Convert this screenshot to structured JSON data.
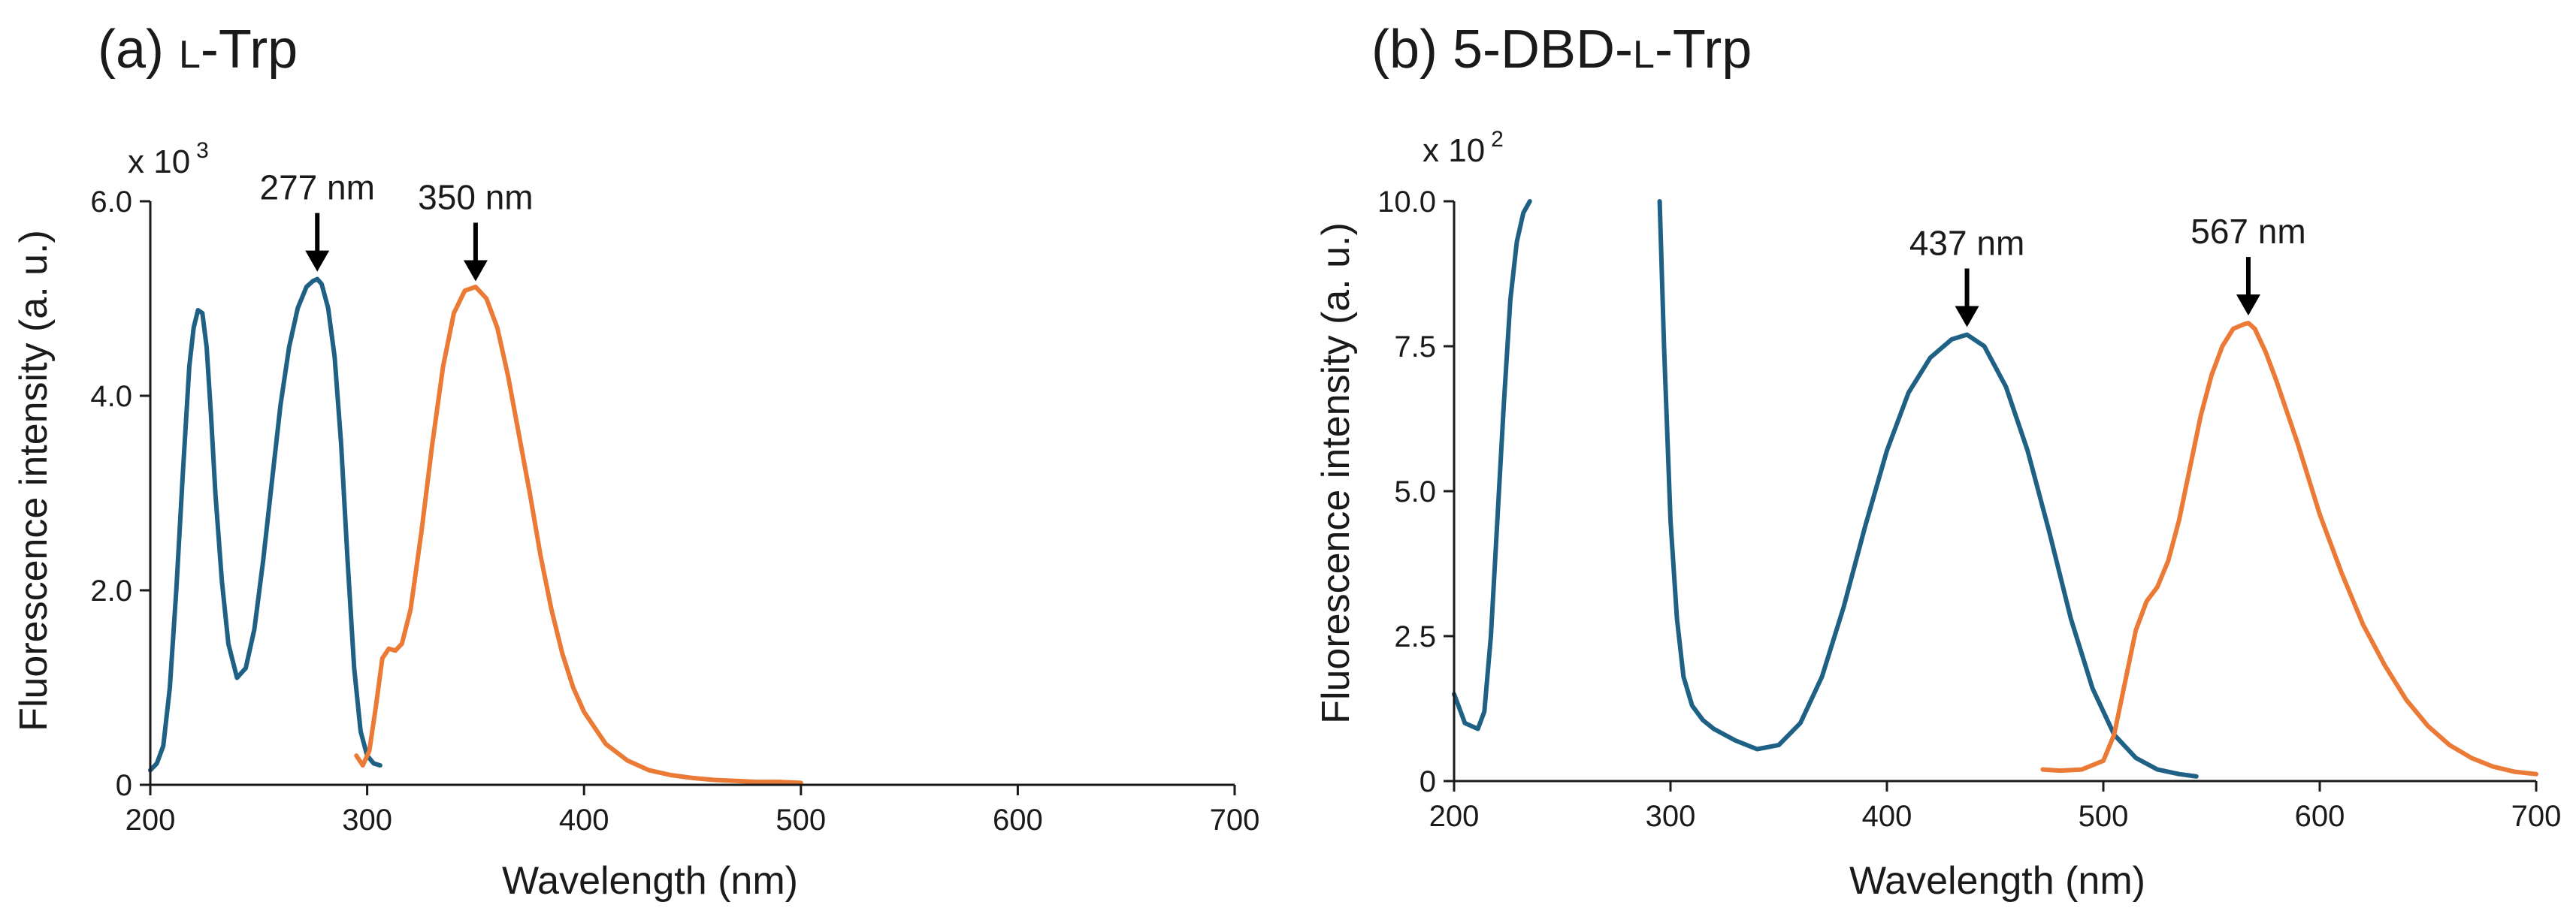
{
  "colors": {
    "excitation": "#1f6185",
    "emission": "#ea7a35",
    "axis": "#1a1a1a"
  },
  "chart_data": [
    {
      "type": "line",
      "title": "(a) L-Trp",
      "title_parts": [
        "(a) ",
        "L",
        "-Trp"
      ],
      "xlabel": "Wavelength (nm)",
      "ylabel": "Fluorescence intensity (a. u.)",
      "y_multiplier": {
        "base": "x 10",
        "exponent": "3"
      },
      "xlim": [
        200,
        700
      ],
      "ylim": [
        0,
        6.0
      ],
      "x_ticks": [
        200,
        300,
        400,
        500,
        600,
        700
      ],
      "x_tick_labels": [
        "200",
        "300",
        "400",
        "500",
        "600",
        "700"
      ],
      "y_ticks": [
        0,
        2.0,
        4.0,
        6.0
      ],
      "y_tick_labels": [
        "0",
        "2.0",
        "4.0",
        "6.0"
      ],
      "grid": false,
      "annotations": [
        {
          "label": "277 nm",
          "x": 277,
          "y": 5.2
        },
        {
          "label": "350 nm",
          "x": 350,
          "y": 5.1
        }
      ],
      "series": [
        {
          "role": "excitation",
          "x": [
            200,
            203,
            206,
            209,
            212,
            215,
            218,
            220,
            222,
            224,
            226,
            228,
            230,
            233,
            236,
            240,
            244,
            248,
            252,
            256,
            260,
            264,
            268,
            272,
            275,
            277,
            279,
            282,
            285,
            288,
            291,
            294,
            297,
            300,
            303,
            306
          ],
          "y": [
            0.15,
            0.22,
            0.4,
            1.0,
            2.0,
            3.2,
            4.3,
            4.7,
            4.88,
            4.85,
            4.5,
            3.8,
            3.0,
            2.1,
            1.45,
            1.1,
            1.2,
            1.6,
            2.3,
            3.1,
            3.9,
            4.5,
            4.9,
            5.12,
            5.18,
            5.2,
            5.15,
            4.9,
            4.4,
            3.5,
            2.3,
            1.2,
            0.55,
            0.3,
            0.22,
            0.2
          ]
        },
        {
          "role": "emission",
          "x": [
            295,
            298,
            301,
            304,
            307,
            310,
            313,
            316,
            320,
            325,
            330,
            335,
            340,
            345,
            350,
            355,
            360,
            365,
            370,
            375,
            380,
            385,
            390,
            395,
            400,
            410,
            420,
            430,
            440,
            450,
            460,
            470,
            480,
            490,
            500
          ],
          "y": [
            0.3,
            0.2,
            0.35,
            0.8,
            1.3,
            1.4,
            1.38,
            1.45,
            1.8,
            2.6,
            3.5,
            4.3,
            4.85,
            5.08,
            5.12,
            5.0,
            4.7,
            4.2,
            3.6,
            3.0,
            2.35,
            1.8,
            1.35,
            1.0,
            0.75,
            0.42,
            0.25,
            0.15,
            0.1,
            0.07,
            0.05,
            0.04,
            0.03,
            0.03,
            0.02
          ]
        }
      ]
    },
    {
      "type": "line",
      "title": "(b) 5-DBD-L-Trp",
      "title_parts": [
        "(b) 5-DBD-",
        "L",
        "-Trp"
      ],
      "xlabel": "Wavelength (nm)",
      "ylabel": "Fluorescence intensity (a. u.)",
      "y_multiplier": {
        "base": "x 10",
        "exponent": "2"
      },
      "xlim": [
        200,
        700
      ],
      "ylim": [
        0,
        10.0
      ],
      "x_ticks": [
        200,
        300,
        400,
        500,
        600,
        700
      ],
      "x_tick_labels": [
        "200",
        "300",
        "400",
        "500",
        "600",
        "700"
      ],
      "y_ticks": [
        0,
        2.5,
        5.0,
        7.5,
        10.0
      ],
      "y_tick_labels": [
        "0",
        "2.5",
        "5.0",
        "7.5",
        "10.0"
      ],
      "grid": false,
      "annotations": [
        {
          "label": "437 nm",
          "x": 437,
          "y": 7.7
        },
        {
          "label": "567 nm",
          "x": 567,
          "y": 7.9
        }
      ],
      "series": [
        {
          "role": "excitation",
          "x": [
            200,
            202,
            205,
            208,
            211,
            214,
            217,
            220,
            223,
            226,
            229,
            232,
            235
          ],
          "y": [
            1.5,
            1.3,
            1.0,
            0.95,
            0.9,
            1.2,
            2.5,
            4.5,
            6.5,
            8.3,
            9.3,
            9.8,
            10.0
          ]
        },
        {
          "role": "excitation",
          "x": [
            295,
            297,
            300,
            303,
            306,
            310,
            315,
            320,
            330,
            340,
            350,
            360,
            370,
            380,
            390,
            400,
            410,
            420,
            430,
            437,
            445,
            455,
            465,
            475,
            485,
            495,
            505,
            515,
            525,
            535,
            543
          ],
          "y": [
            10.0,
            7.5,
            4.5,
            2.8,
            1.8,
            1.3,
            1.05,
            0.9,
            0.7,
            0.55,
            0.62,
            1.0,
            1.8,
            3.0,
            4.4,
            5.7,
            6.7,
            7.3,
            7.62,
            7.7,
            7.5,
            6.8,
            5.7,
            4.3,
            2.8,
            1.6,
            0.8,
            0.4,
            0.2,
            0.12,
            0.08
          ]
        },
        {
          "role": "emission",
          "x": [
            472,
            480,
            490,
            500,
            505,
            510,
            515,
            520,
            525,
            530,
            535,
            540,
            545,
            550,
            555,
            560,
            565,
            567,
            570,
            575,
            580,
            590,
            600,
            610,
            620,
            630,
            640,
            650,
            660,
            670,
            680,
            690,
            700
          ],
          "y": [
            0.2,
            0.18,
            0.2,
            0.35,
            0.8,
            1.7,
            2.6,
            3.1,
            3.35,
            3.8,
            4.5,
            5.4,
            6.3,
            7.0,
            7.5,
            7.8,
            7.88,
            7.9,
            7.8,
            7.4,
            6.9,
            5.8,
            4.6,
            3.6,
            2.7,
            2.0,
            1.4,
            0.95,
            0.62,
            0.4,
            0.25,
            0.16,
            0.12
          ]
        }
      ]
    }
  ]
}
